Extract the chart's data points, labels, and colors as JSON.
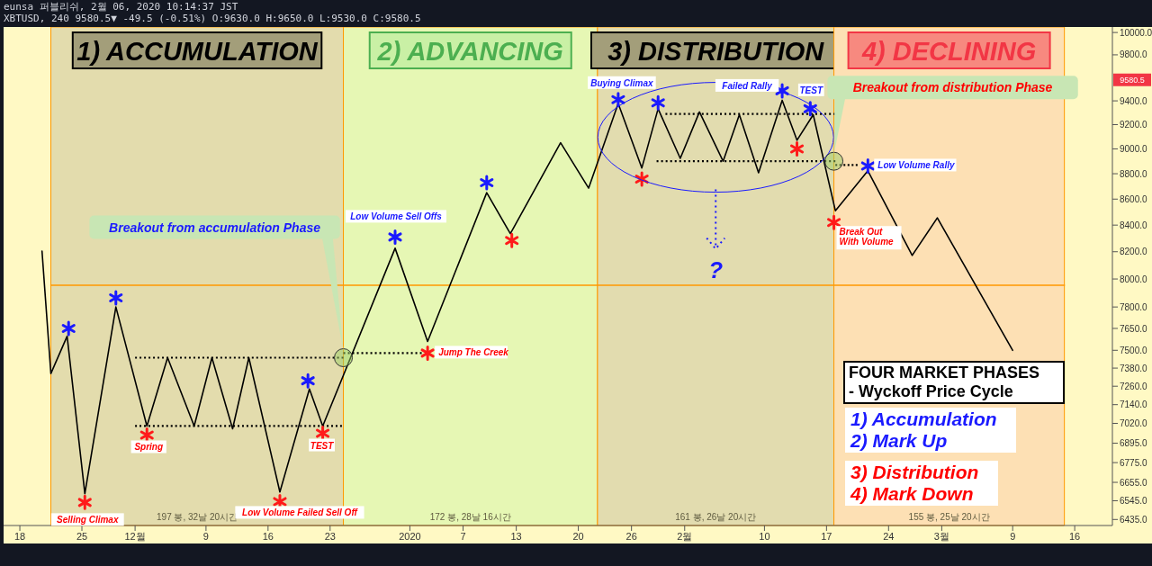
{
  "chart_data": {
    "type": "line",
    "title": "FOUR MARKET PHASES",
    "log": true,
    "grid": false,
    "xlim": [
      "2019-11-16T04:00",
      "2020-03-20T06:00"
    ],
    "xticks": [
      {
        "value": "2019-11-18",
        "label": "18"
      },
      {
        "value": "2019-11-25",
        "label": "25"
      },
      {
        "value": "2019-12-01",
        "label": "12월"
      },
      {
        "value": "2019-12-09",
        "label": "9"
      },
      {
        "value": "2019-12-16",
        "label": "16"
      },
      {
        "value": "2019-12-23",
        "label": "23"
      },
      {
        "value": "2020-01-01",
        "label": "2020"
      },
      {
        "value": "2020-01-07",
        "label": "7"
      },
      {
        "value": "2020-01-13",
        "label": "13"
      },
      {
        "value": "2020-01-20",
        "label": "20"
      },
      {
        "value": "2020-01-26",
        "label": "26"
      },
      {
        "value": "2020-02-01",
        "label": "2월"
      },
      {
        "value": "2020-02-10",
        "label": "10"
      },
      {
        "value": "2020-02-17",
        "label": "17"
      },
      {
        "value": "2020-02-24",
        "label": "24"
      },
      {
        "value": "2020-03-01",
        "label": "3월"
      },
      {
        "value": "2020-03-09",
        "label": "9"
      },
      {
        "value": "2020-03-16",
        "label": "16"
      }
    ],
    "ylim": [
      6400,
      10050
    ],
    "yticks": [
      {
        "value": 6435,
        "label": "6435.0"
      },
      {
        "value": 6545,
        "label": "6545.0"
      },
      {
        "value": 6655,
        "label": "6655.0"
      },
      {
        "value": 6775,
        "label": "6775.0"
      },
      {
        "value": 6895,
        "label": "6895.0"
      },
      {
        "value": 7020,
        "label": "7020.0"
      },
      {
        "value": 7140,
        "label": "7140.0"
      },
      {
        "value": 7260,
        "label": "7260.0"
      },
      {
        "value": 7380,
        "label": "7380.0"
      },
      {
        "value": 7500,
        "label": "7500.0"
      },
      {
        "value": 7650,
        "label": "7650.0"
      },
      {
        "value": 7800,
        "label": "7800.0"
      },
      {
        "value": 8000,
        "label": "8000.0"
      },
      {
        "value": 8200,
        "label": "8200.0"
      },
      {
        "value": 8400,
        "label": "8400.0"
      },
      {
        "value": 8600,
        "label": "8600.0"
      },
      {
        "value": 8800,
        "label": "8800.0"
      },
      {
        "value": 9000,
        "label": "9000.0"
      },
      {
        "value": 9200,
        "label": "9200.0"
      },
      {
        "value": 9400,
        "label": "9400.0"
      },
      {
        "value": 9800,
        "label": "9800.0"
      },
      {
        "value": 10000,
        "label": "10000.0"
      }
    ],
    "bands": [
      {
        "axis": "x",
        "from": "2019-11-21T12:00",
        "to": "2019-12-24T12:00",
        "label": "1) ACCUMULATION",
        "color": "#e3dcad"
      },
      {
        "axis": "x",
        "from": "2019-12-24T12:00",
        "to": "2020-01-22T04:00",
        "label": "2) ADVANCING",
        "color": "#e6f7b4"
      },
      {
        "axis": "x",
        "from": "2020-01-22T04:00",
        "to": "2020-02-17T20:00",
        "label": "3) DISTRIBUTION",
        "color": "#e2dcaf"
      },
      {
        "axis": "x",
        "from": "2020-02-17T20:00",
        "to": "2020-03-14T20:00",
        "label": "4) DECLINING",
        "color": "#fde0b4"
      }
    ],
    "series": [
      {
        "color": "#ff9800",
        "line_style": "solid",
        "x": [
          "2019-11-21T12:00",
          "2020-03-14T20:00"
        ],
        "values": [
          7955,
          7955
        ]
      },
      {
        "color": "#000000",
        "line_style": "dotted",
        "x": [
          "2019-12-01T00:00",
          "2019-12-24T12:00"
        ],
        "values": [
          7450,
          7450
        ]
      },
      {
        "color": "#000000",
        "line_style": "dotted",
        "x": [
          "2019-12-01T00:00",
          "2019-12-24T08:00"
        ],
        "values": [
          7003,
          7003
        ]
      },
      {
        "color": "#000000",
        "line_style": "dotted",
        "x": [
          "2019-12-24T12:00",
          "2020-01-02T08:00"
        ],
        "values": [
          7481,
          7481
        ]
      },
      {
        "color": "#000000",
        "line_style": "dotted",
        "x": [
          "2020-01-29T20:00",
          "2020-02-18T00:00"
        ],
        "values": [
          9290,
          9290
        ]
      },
      {
        "color": "#000000",
        "line_style": "dotted",
        "x": [
          "2020-01-28T20:00",
          "2020-02-18T00:00"
        ],
        "values": [
          8900,
          8900
        ]
      },
      {
        "color": "#000000",
        "line_style": "dotted",
        "x": [
          "2020-02-18T00:00",
          "2020-02-20T12:00"
        ],
        "values": [
          8870,
          8870
        ]
      },
      {
        "color": "#000000",
        "line_style": "solid",
        "x": [
          "2019-11-20T12:00",
          "2019-11-21T12:00",
          "2019-11-23T08:00",
          "2019-11-25T08:00",
          "2019-11-28T20:00",
          "2019-12-02T08:00",
          "2019-12-04T16:00",
          "2019-12-07T16:00",
          "2019-12-09T16:00",
          "2019-12-12T00:00",
          "2019-12-13T20:00",
          "2019-12-17T08:00",
          "2019-12-20T16:00",
          "2019-12-22T04:00",
          "2019-12-30T08:00",
          "2020-01-03T00:00",
          "2020-01-09T16:00",
          "2020-01-12T08:00",
          "2020-01-18T00:00",
          "2020-01-21T04:00",
          "2020-01-24T12:00",
          "2020-01-27T04:00",
          "2020-01-29T00:00",
          "2020-01-31T12:00",
          "2020-02-02T16:00",
          "2020-02-05T08:00",
          "2020-02-07T04:00",
          "2020-02-09T08:00",
          "2020-02-12T00:00",
          "2020-02-13T16:00",
          "2020-02-15T12:00",
          "2020-02-18T00:00",
          "2020-02-21T16:00",
          "2020-02-26T16:00",
          "2020-02-29T12:00",
          "2020-03-09T00:00"
        ],
        "values": [
          8205,
          7344,
          7596,
          6587,
          7800,
          7003,
          7450,
          7003,
          7450,
          6986,
          7450,
          6597,
          7242,
          7003,
          8226,
          7560,
          8650,
          8335,
          9050,
          8686,
          9378,
          8846,
          9333,
          8923,
          9306,
          8900,
          9283,
          8808,
          9405,
          9071,
          9283,
          8510,
          8823,
          8173,
          8455,
          7500
        ]
      },
      {
        "type": "scatter",
        "color": "#1a1aff",
        "marker": "cross",
        "x": [
          "2019-11-23T12:00",
          "2019-11-28T20:00",
          "2019-12-20T12:00",
          "2019-12-30T08:00",
          "2020-01-09T16:00",
          "2020-01-24T12:00",
          "2020-01-29T00:00",
          "2020-02-12T00:00",
          "2020-02-15T04:00",
          "2020-02-21T16:00"
        ],
        "values": [
          7650,
          7865,
          7296,
          8310,
          8729,
          9410,
          9383,
          9486,
          9333,
          8862
        ]
      },
      {
        "type": "scatter",
        "color": "#ff1a1a",
        "marker": "cross",
        "x": [
          "2019-11-25T08:00",
          "2019-12-02T08:00",
          "2019-12-17T08:00",
          "2019-12-22T04:00",
          "2020-01-03T00:00",
          "2020-01-12T12:00",
          "2020-01-27T04:00",
          "2020-02-13T16:00",
          "2020-02-17T20:00"
        ],
        "values": [
          6535,
          6946,
          6540,
          6957,
          7481,
          8284,
          8757,
          9000,
          8420
        ]
      }
    ],
    "annotations": [
      "eunsa 퍼블리쉬, 2월 06, 2020 10:14:37 JST",
      "XBTUSD, 240 9580.5▼ -49.5 (-0.51%) O:9630.0 H:9650.0 L:9530.0 C:9580.5",
      "- Wyckoff Price Cycle",
      "1) Accumulation",
      "2) Mark Up",
      "3) Distribution",
      "4) Mark Down",
      {
        "text": "Selling Climax",
        "x": "2019-11-25T08:00",
        "y": 6535
      },
      {
        "text": "Spring",
        "x": "2019-12-02T08:00",
        "y": 6946
      },
      {
        "text": "Low Volume Failed Sell Off",
        "x": "2019-12-17T08:00",
        "y": 6540
      },
      {
        "text": "TEST",
        "x": "2019-12-22T04:00",
        "y": 6957
      },
      {
        "text": "Breakout from accumulation Phase",
        "x": "2019-12-24T12:00",
        "y": 7450
      },
      {
        "text": "Low Volume Sell Offs",
        "x": "2019-12-30T08:00",
        "y": 8310
      },
      {
        "text": "Jump The Creek",
        "x": "2020-01-03T00:00",
        "y": 7481
      },
      {
        "text": "Buying Climax",
        "x": "2020-01-24T12:00",
        "y": 9410
      },
      {
        "text": "Failed Rally",
        "x": "2020-02-12T00:00",
        "y": 9486
      },
      {
        "text": "TEST",
        "x": "2020-02-15T04:00",
        "y": 9333
      },
      {
        "text": "Breakout from distribution Phase",
        "x": "2020-02-17T20:00",
        "y": 8900
      },
      {
        "text": "Low Volume Rally",
        "x": "2020-02-21T16:00",
        "y": 8862
      },
      {
        "text": "Break Out With Volume",
        "x": "2020-02-17T20:00",
        "y": 8420
      },
      "?",
      "197 봉, 32날 20시간",
      "172 봉, 28날 16시간",
      "161 봉, 26날 20시간",
      "155 봉, 25날 20시간",
      {
        "text": "9580.5",
        "y": 9580.5
      }
    ]
  }
}
